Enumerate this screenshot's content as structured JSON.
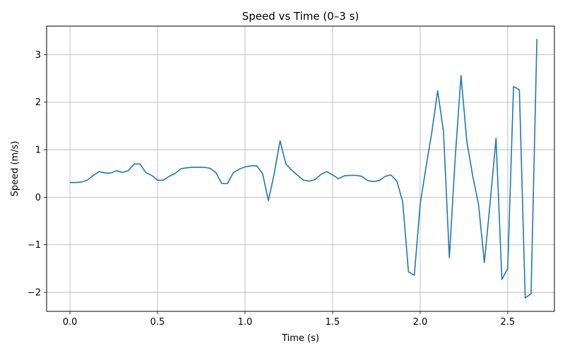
{
  "chart_data": {
    "type": "line",
    "title": "Speed vs Time (0–3 s)",
    "xlabel": "Time (s)",
    "ylabel": "Speed (m/s)",
    "xlim": [
      -0.1333,
      2.7667
    ],
    "ylim": [
      -2.4,
      3.6
    ],
    "xticks": [
      0.0,
      0.5,
      1.0,
      1.5,
      2.0,
      2.5
    ],
    "xtick_labels": [
      "0.0",
      "0.5",
      "1.0",
      "1.5",
      "2.0",
      "2.5"
    ],
    "yticks": [
      -2,
      -1,
      0,
      1,
      2,
      3
    ],
    "ytick_labels": [
      "−2",
      "−1",
      "0",
      "1",
      "2",
      "3"
    ],
    "grid": true,
    "line_color": "#1f77b4",
    "series": [
      {
        "x": [
          0.0,
          0.0333,
          0.0667,
          0.1,
          0.1333,
          0.1667,
          0.2,
          0.2333,
          0.2667,
          0.3,
          0.3333,
          0.3667,
          0.4,
          0.4333,
          0.4667,
          0.5,
          0.5333,
          0.5667,
          0.6,
          0.6333,
          0.6667,
          0.7,
          0.7333,
          0.7667,
          0.8,
          0.8333,
          0.8667,
          0.9,
          0.9333,
          0.9667,
          1.0,
          1.0333,
          1.0667,
          1.1,
          1.1333,
          1.1667,
          1.2,
          1.2333,
          1.2667,
          1.3,
          1.3333,
          1.3667,
          1.4,
          1.4333,
          1.4667,
          1.5,
          1.5333,
          1.5667,
          1.6,
          1.6333,
          1.6667,
          1.7,
          1.7333,
          1.7667,
          1.8,
          1.8333,
          1.8667,
          1.9,
          1.9333,
          1.9667,
          2.0,
          2.0333,
          2.0667,
          2.1,
          2.1333,
          2.1667,
          2.2,
          2.2333,
          2.2667,
          2.3,
          2.3333,
          2.3667,
          2.4,
          2.4333,
          2.4667,
          2.5,
          2.5333,
          2.5667,
          2.6,
          2.6333,
          2.6667
        ],
        "values": [
          0.31,
          0.31,
          0.32,
          0.36,
          0.46,
          0.54,
          0.51,
          0.51,
          0.56,
          0.52,
          0.56,
          0.7,
          0.7,
          0.52,
          0.46,
          0.36,
          0.36,
          0.44,
          0.5,
          0.6,
          0.62,
          0.63,
          0.63,
          0.63,
          0.61,
          0.52,
          0.29,
          0.29,
          0.52,
          0.59,
          0.64,
          0.66,
          0.66,
          0.5,
          -0.07,
          0.5,
          1.19,
          0.7,
          0.57,
          0.46,
          0.36,
          0.34,
          0.37,
          0.48,
          0.54,
          0.47,
          0.39,
          0.45,
          0.46,
          0.46,
          0.44,
          0.35,
          0.33,
          0.35,
          0.44,
          0.47,
          0.34,
          -0.09,
          -1.57,
          -1.64,
          -0.15,
          0.63,
          1.37,
          2.24,
          1.38,
          -1.27,
          0.82,
          2.56,
          1.17,
          0.45,
          -0.15,
          -1.37,
          -0.1,
          1.24,
          -1.73,
          -1.5,
          2.33,
          2.26,
          -2.12,
          -2.03,
          3.33
        ]
      }
    ]
  }
}
